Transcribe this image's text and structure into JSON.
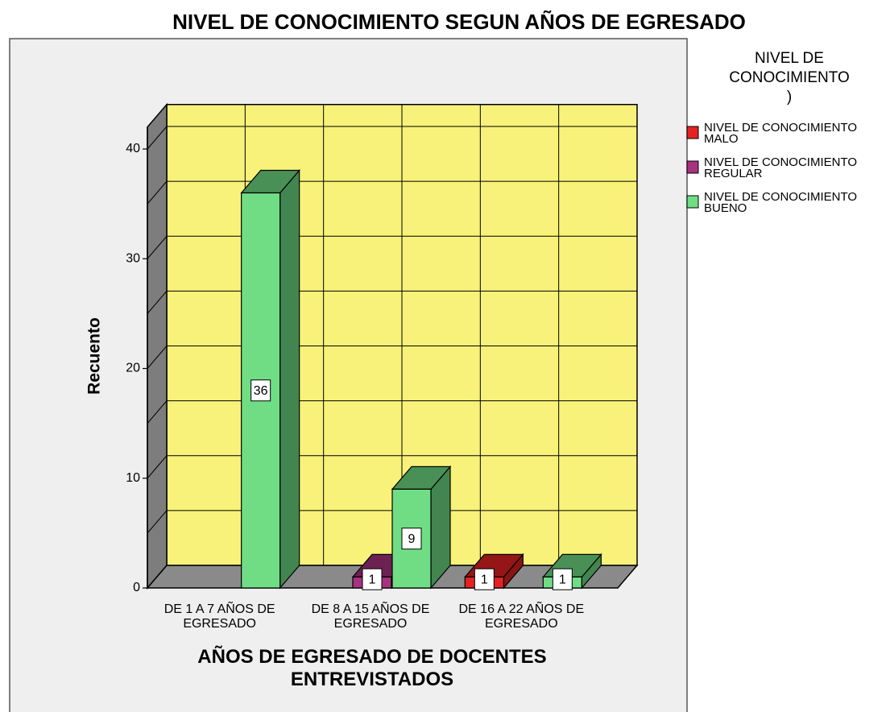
{
  "chart_data": {
    "type": "bar3d",
    "title": "NIVEL DE CONOCIMIENTO SEGUN AÑOS DE EGRESADO",
    "x_label": "AÑOS DE EGRESADO  DE DOCENTES\nENTREVISTADOS",
    "y_label": "Recuento",
    "legend_title": "NIVEL DE\nCONOCIMIENTO\n)",
    "categories": [
      "DE 1  A 7 AÑOS DE\nEGRESADO",
      "DE 8 A 15 AÑOS DE\nEGRESADO",
      "DE 16 A 22 AÑOS DE\nEGRESADO"
    ],
    "series": [
      {
        "name": "NIVEL DE CONOCIMIENTO\nMALO",
        "color": "#e52222",
        "values": [
          null,
          null,
          1
        ]
      },
      {
        "name": "NIVEL DE CONOCIMIENTO\nREGULAR",
        "color": "#a8327f",
        "values": [
          null,
          1,
          null
        ]
      },
      {
        "name": "NIVEL DE CONOCIMIENTO\nBUENO",
        "color": "#70dd85",
        "values": [
          36,
          9,
          1
        ]
      }
    ],
    "ylim": [
      0,
      42
    ],
    "yticks": [
      0,
      10,
      20,
      30,
      40
    ],
    "minor_yticks": [
      5,
      15,
      25,
      35
    ],
    "grid": true,
    "legend": "right",
    "wall_color": "#f8f27a",
    "floor_color": "#8a8a8a"
  }
}
